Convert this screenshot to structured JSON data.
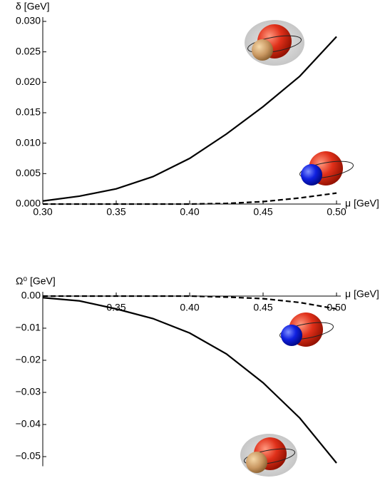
{
  "chart_data": [
    {
      "type": "line",
      "x_label": "μ [GeV]",
      "y_label": "δ [GeV]",
      "x": [
        0.3,
        0.325,
        0.35,
        0.375,
        0.4,
        0.425,
        0.45,
        0.475,
        0.5
      ],
      "series": [
        {
          "color": "#000000",
          "style": "solid",
          "values": [
            0.0005,
            0.0013,
            0.0025,
            0.0045,
            0.0075,
            0.0115,
            0.016,
            0.021,
            0.0275
          ]
        },
        {
          "color": "#000000",
          "style": "dashed",
          "values": [
            0,
            0,
            0,
            0,
            0,
            0.0001,
            0.0004,
            0.001,
            0.0018
          ]
        }
      ],
      "xlim": [
        0.3,
        0.5
      ],
      "xticks": [
        {
          "value": 0.3,
          "label": "0.30"
        },
        {
          "value": 0.35,
          "label": "0.35"
        },
        {
          "value": 0.4,
          "label": "0.40"
        },
        {
          "value": 0.45,
          "label": "0.45"
        },
        {
          "value": 0.5,
          "label": "0.50"
        }
      ],
      "ylim": [
        0,
        0.03
      ],
      "yticks": [
        {
          "value": 0,
          "label": "0.000"
        },
        {
          "value": 0.005,
          "label": "0.005"
        },
        {
          "value": 0.01,
          "label": "0.010"
        },
        {
          "value": 0.015,
          "label": "0.015"
        },
        {
          "value": 0.02,
          "label": "0.020"
        },
        {
          "value": 0.025,
          "label": "0.025"
        },
        {
          "value": 0.03,
          "label": "0.030"
        }
      ]
    },
    {
      "type": "line",
      "x_label": "μ [GeV]",
      "y_label": "Ω⁰ [GeV]",
      "x": [
        0.3,
        0.325,
        0.35,
        0.375,
        0.4,
        0.425,
        0.45,
        0.475,
        0.5
      ],
      "series": [
        {
          "color": "#000000",
          "style": "solid",
          "values": [
            -0.0005,
            -0.0015,
            -0.004,
            -0.007,
            -0.0115,
            -0.018,
            -0.027,
            -0.038,
            -0.052
          ]
        },
        {
          "color": "#000000",
          "style": "dashed",
          "values": [
            0,
            0,
            0,
            0,
            0,
            -0.0003,
            -0.0008,
            -0.002,
            -0.004
          ]
        }
      ],
      "xlim": [
        0.3,
        0.5
      ],
      "xticks": [
        {
          "value": 0.35,
          "label": "0.35"
        },
        {
          "value": 0.4,
          "label": "0.40"
        },
        {
          "value": 0.45,
          "label": "0.45"
        },
        {
          "value": 0.5,
          "label": "0.50"
        }
      ],
      "ylim": [
        -0.053,
        0
      ],
      "yticks": [
        {
          "value": 0,
          "label": "0.00"
        },
        {
          "value": -0.01,
          "label": "−0.01"
        },
        {
          "value": -0.02,
          "label": "−0.02"
        },
        {
          "value": -0.03,
          "label": "−0.03"
        },
        {
          "value": -0.04,
          "label": "−0.04"
        },
        {
          "value": -0.05,
          "label": "−0.05"
        }
      ]
    }
  ]
}
